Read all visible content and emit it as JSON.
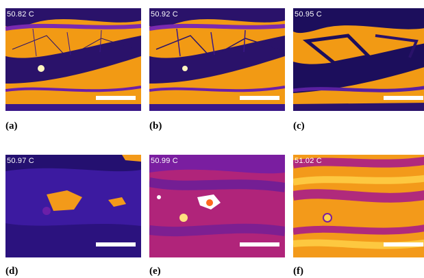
{
  "panels": [
    {
      "id": "a",
      "temperature": "50.82 C",
      "caption": "(a)",
      "colors": {
        "bg": "#f29a14",
        "band": "#2a126a",
        "accent": "#6b1fa8"
      }
    },
    {
      "id": "b",
      "temperature": "50.92 C",
      "caption": "(b)",
      "colors": {
        "bg": "#f29a14",
        "band": "#2a126a",
        "accent": "#6b1fa8"
      }
    },
    {
      "id": "c",
      "temperature": "50.95 C",
      "caption": "(c)",
      "colors": {
        "bg": "#f29a14",
        "band": "#1c0e5c",
        "accent": "#5a20a0"
      }
    },
    {
      "id": "d",
      "temperature": "50.97 C",
      "caption": "(d)",
      "colors": {
        "bg": "#3c1aa0",
        "band": "#241070",
        "accent": "#f39a1a"
      }
    },
    {
      "id": "e",
      "temperature": "50.99 C",
      "caption": "(e)",
      "colors": {
        "bg": "#b0247a",
        "band": "#5b1ca0",
        "accent": "#ff6a20"
      }
    },
    {
      "id": "f",
      "temperature": "51.02 C",
      "caption": "(f)",
      "colors": {
        "bg": "#f39a1a",
        "band": "#b02a7c",
        "accent": "#ffd34a"
      }
    }
  ]
}
